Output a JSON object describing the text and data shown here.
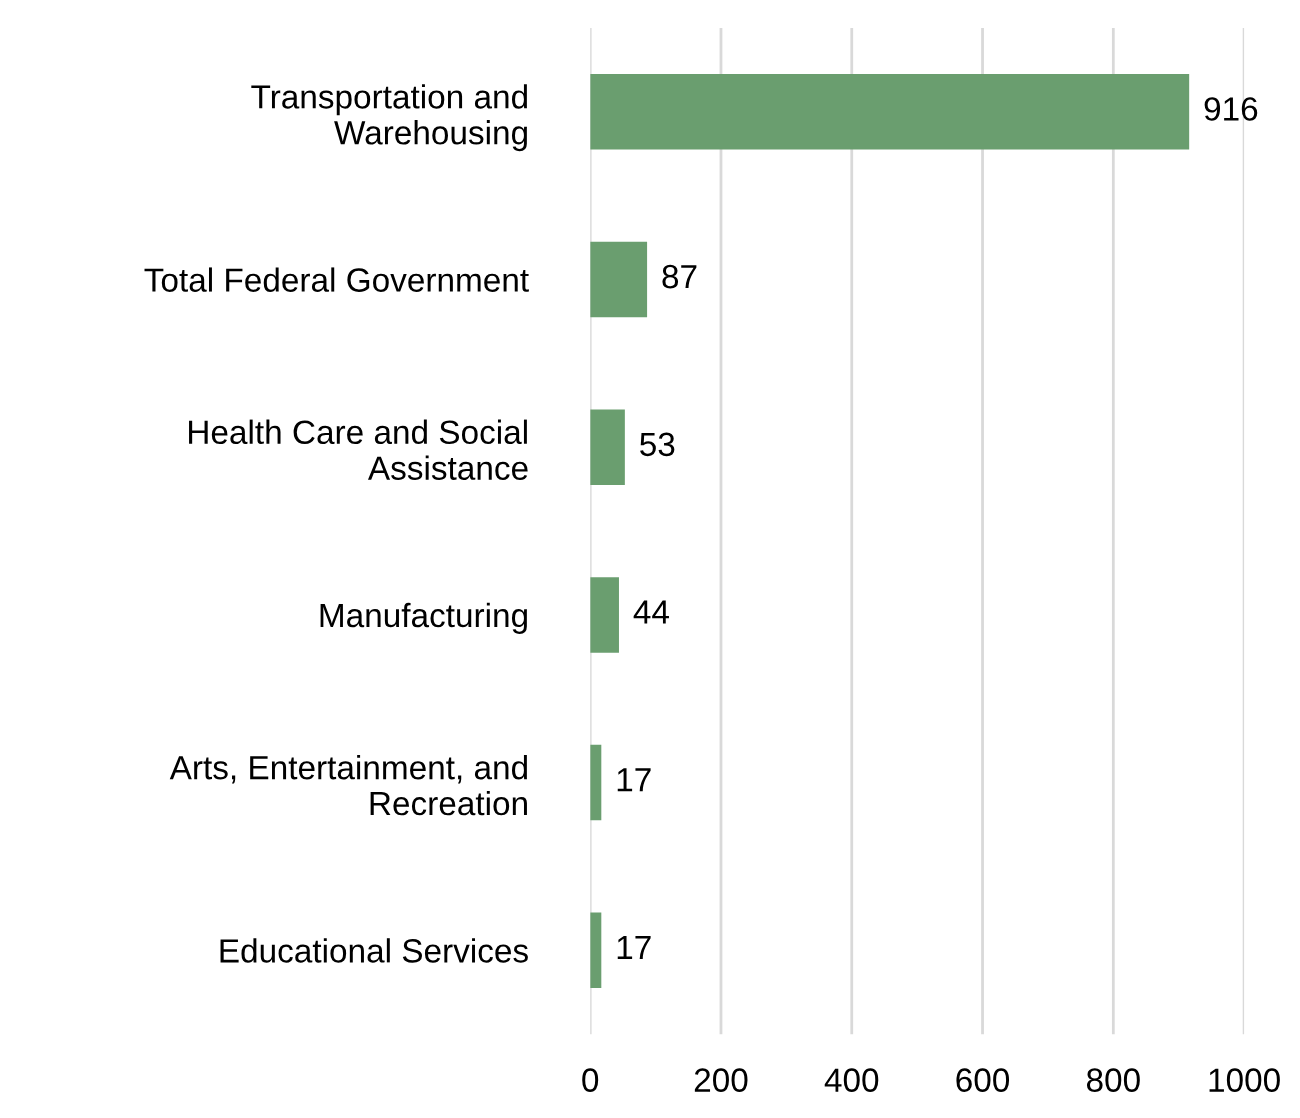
{
  "chart_data": {
    "type": "bar",
    "orientation": "horizontal",
    "categories": [
      "Transportation and\nWarehousing",
      "Total Federal Government",
      "Health Care and Social\nAssistance",
      "Manufacturing",
      "Arts, Entertainment, and\nRecreation",
      "Educational Services"
    ],
    "values": [
      916,
      87,
      53,
      44,
      17,
      17
    ],
    "color": "#6a9e6f",
    "xlim": [
      0,
      1000
    ],
    "xticks": [
      0,
      200,
      400,
      600,
      800,
      1000
    ],
    "grid": "x",
    "data_labels": true,
    "legend": false
  }
}
